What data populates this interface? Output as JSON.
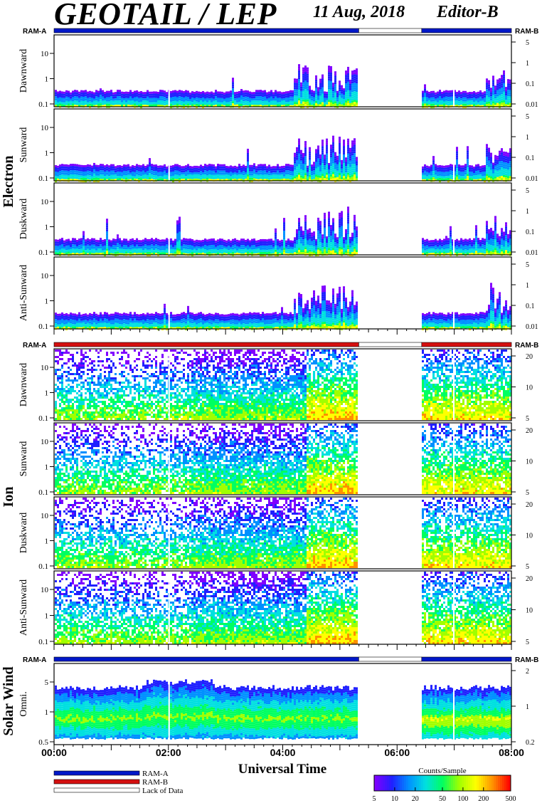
{
  "header": {
    "title": "GEOTAIL / LEP",
    "date": "11 Aug, 2018",
    "editor": "Editor-B"
  },
  "ram_labels": {
    "left": "RAM-A",
    "right": "RAM-B"
  },
  "groups": {
    "electron": "Electron",
    "ion": "Ion",
    "solar_wind": "Solar Wind"
  },
  "x_axis": {
    "label": "Universal Time",
    "ticks": [
      "00:00",
      "02:00",
      "04:00",
      "06:00",
      "08:00"
    ]
  },
  "legend": {
    "items": [
      "RAM-A",
      "RAM-B",
      "Lack of Data"
    ],
    "colorbar_title": "Counts/Sample",
    "colorbar_ticks": [
      "5",
      "10",
      "20",
      "50",
      "100",
      "200",
      "500"
    ]
  },
  "colors": {
    "ram_a": "#0018c8",
    "ram_b": "#d41010",
    "lack_of_data": "#ffffff",
    "colorscale": [
      "#8000ff",
      "#2020ff",
      "#0090ff",
      "#00e0e0",
      "#00ff60",
      "#a0ff00",
      "#ffff00",
      "#ff9000",
      "#ff0000"
    ]
  },
  "chart_data": {
    "type": "heatmap",
    "x_range_hours": [
      0,
      8
    ],
    "data_gap_hours": [
      5.33,
      6.43
    ],
    "colorscale_range": [
      5,
      500
    ],
    "colorscale_log": true,
    "groups": [
      {
        "name": "Electron",
        "ram_bar": [
          {
            "from": 0,
            "to": 5.33,
            "state": "RAM-A"
          },
          {
            "from": 5.33,
            "to": 6.43,
            "state": "Lack of Data"
          },
          {
            "from": 6.43,
            "to": 8,
            "state": "RAM-A"
          }
        ],
        "panels": [
          {
            "label": "Dawnward",
            "left_ticks": [
              "10",
              "1",
              "0.1"
            ],
            "right_ticks": [
              "5",
              "1",
              "0.1",
              "0.01"
            ]
          },
          {
            "label": "Sunward",
            "left_ticks": [
              "10",
              "1",
              "0.1"
            ],
            "right_ticks": [
              "5",
              "1",
              "0.1",
              "0.01"
            ]
          },
          {
            "label": "Duskward",
            "left_ticks": [
              "10",
              "1",
              "0.1"
            ],
            "right_ticks": [
              "5",
              "1",
              "0.1",
              "0.01"
            ]
          },
          {
            "label": "Anti-Sunward",
            "left_ticks": [
              "10",
              "1",
              "0.1"
            ],
            "right_ticks": [
              "5",
              "1",
              "0.1",
              "0.01"
            ]
          }
        ]
      },
      {
        "name": "Ion",
        "ram_bar": [
          {
            "from": 0,
            "to": 5.33,
            "state": "RAM-B"
          },
          {
            "from": 5.33,
            "to": 6.43,
            "state": "Lack of Data"
          },
          {
            "from": 6.43,
            "to": 8,
            "state": "RAM-B"
          }
        ],
        "panels": [
          {
            "label": "Dawnward",
            "left_ticks": [
              "10",
              "1",
              "0.1"
            ],
            "right_ticks": [
              "20",
              "10",
              "5"
            ]
          },
          {
            "label": "Sunward",
            "left_ticks": [
              "10",
              "1",
              "0.1"
            ],
            "right_ticks": [
              "20",
              "10",
              "5"
            ]
          },
          {
            "label": "Duskward",
            "left_ticks": [
              "10",
              "1",
              "0.1"
            ],
            "right_ticks": [
              "20",
              "10",
              "5"
            ]
          },
          {
            "label": "Anti-Sunward",
            "left_ticks": [
              "10",
              "1",
              "0.1"
            ],
            "right_ticks": [
              "20",
              "10",
              "5"
            ]
          }
        ]
      },
      {
        "name": "Solar Wind",
        "ram_bar": [
          {
            "from": 0,
            "to": 5.33,
            "state": "RAM-A"
          },
          {
            "from": 5.33,
            "to": 6.43,
            "state": "Lack of Data"
          },
          {
            "from": 6.43,
            "to": 8,
            "state": "RAM-A"
          }
        ],
        "panels": [
          {
            "label": "Omni.",
            "left_ticks": [
              "5",
              "1",
              "0.5"
            ],
            "right_ticks": [
              "2",
              "1",
              "0.2"
            ]
          }
        ]
      }
    ]
  }
}
